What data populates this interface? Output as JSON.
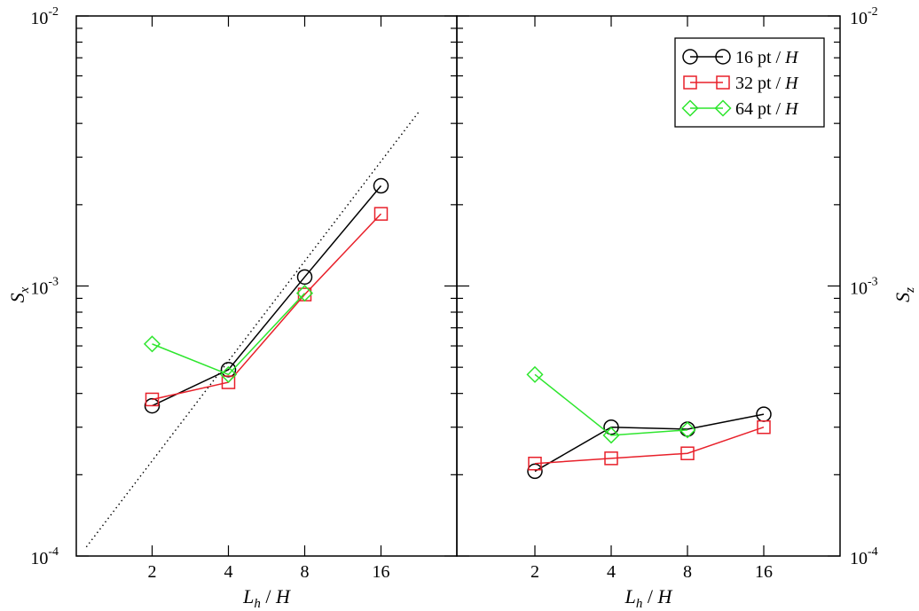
{
  "chart_data": [
    {
      "panel": "left",
      "type": "line",
      "xscale": "log2",
      "yscale": "log10",
      "x_ticks": [
        2,
        4,
        8,
        16
      ],
      "y_ticks": [
        0.0001,
        0.001,
        0.01
      ],
      "xlabel_main": "L",
      "xlabel_sub": "h",
      "xlabel_rest": " / H",
      "ylabel_main": "S",
      "ylabel_sub": "x",
      "ylim": [
        0.0001,
        0.01
      ],
      "series": [
        {
          "name": "16 pt / H",
          "color": "#000000",
          "marker": "circle",
          "x": [
            2,
            4,
            8,
            16
          ],
          "y": [
            0.00036,
            0.00049,
            0.00108,
            0.00235
          ]
        },
        {
          "name": "32 pt / H",
          "color": "#e8202a",
          "marker": "square",
          "x": [
            2,
            4,
            8,
            16
          ],
          "y": [
            0.00038,
            0.00044,
            0.00093,
            0.00185
          ]
        },
        {
          "name": "64 pt / H",
          "color": "#2ee62e",
          "marker": "diamond",
          "x": [
            2,
            4,
            8
          ],
          "y": [
            0.00061,
            0.00047,
            0.00094
          ]
        }
      ],
      "reference_line": {
        "style": "dotted",
        "x": [
          1.1,
          22.5
        ],
        "y": [
          0.000108,
          0.0044
        ]
      }
    },
    {
      "panel": "right",
      "type": "line",
      "xscale": "log2",
      "yscale": "log10",
      "x_ticks": [
        2,
        4,
        8,
        16
      ],
      "y_ticks": [
        0.0001,
        0.001,
        0.01
      ],
      "xlabel_main": "L",
      "xlabel_sub": "h",
      "xlabel_rest": " / H",
      "ylabel_main": "S",
      "ylabel_sub": "z",
      "ylim": [
        0.0001,
        0.01
      ],
      "legend_position": "top-right",
      "series": [
        {
          "name": "16 pt / H",
          "color": "#000000",
          "marker": "circle",
          "x": [
            2,
            4,
            8,
            16
          ],
          "y": [
            0.000206,
            0.0003,
            0.000295,
            0.000335
          ]
        },
        {
          "name": "32 pt / H",
          "color": "#e8202a",
          "marker": "square",
          "x": [
            2,
            4,
            8,
            16
          ],
          "y": [
            0.00022,
            0.00023,
            0.00024,
            0.0003
          ]
        },
        {
          "name": "64 pt / H",
          "color": "#2ee62e",
          "marker": "diamond",
          "x": [
            2,
            4,
            8
          ],
          "y": [
            0.00047,
            0.00028,
            0.000293
          ]
        }
      ]
    }
  ],
  "legend": {
    "entries": [
      {
        "prefix": "16 pt / ",
        "italic": "H",
        "marker": "circle",
        "color": "#000000"
      },
      {
        "prefix": "32 pt / ",
        "italic": "H",
        "marker": "square",
        "color": "#e8202a"
      },
      {
        "prefix": "64 pt / ",
        "italic": "H",
        "marker": "diamond",
        "color": "#2ee62e"
      }
    ]
  },
  "tick_text": {
    "exp_base": "10",
    "exps": [
      "-4",
      "-3",
      "-2"
    ],
    "x_labels": [
      "2",
      "4",
      "8",
      "16"
    ]
  }
}
